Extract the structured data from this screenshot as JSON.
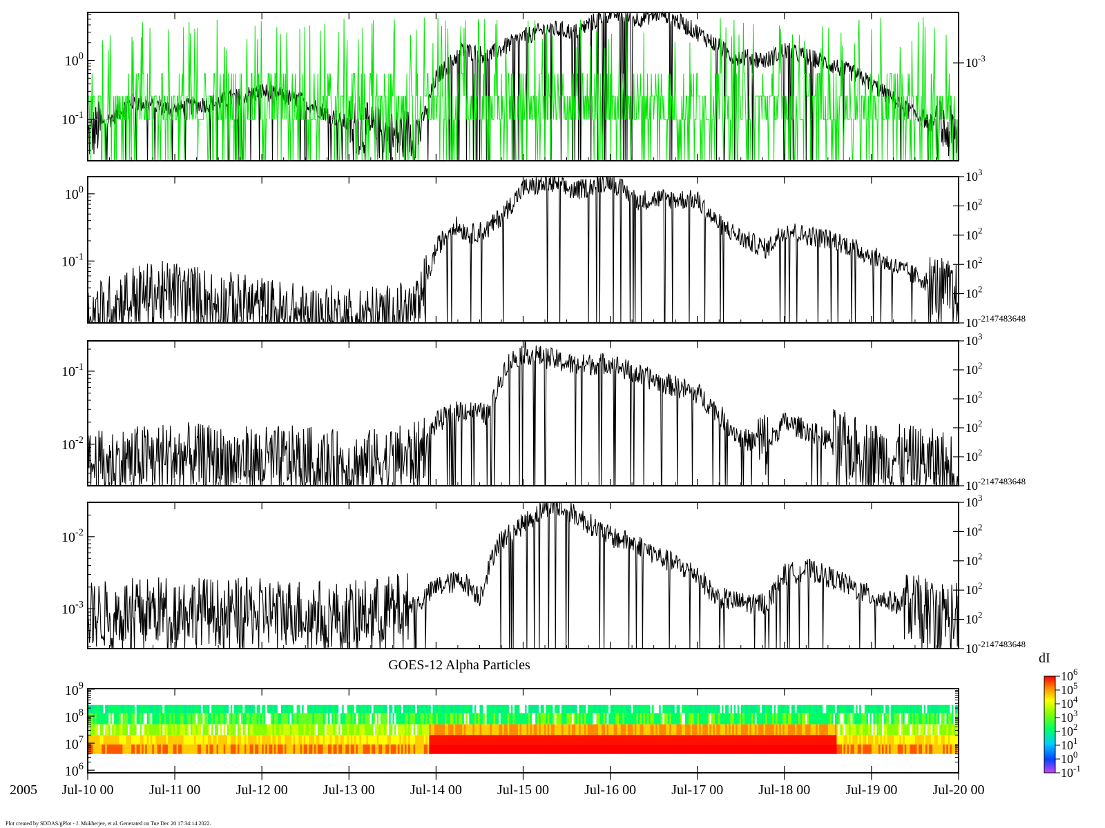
{
  "footer_text": "Plot created by SDDAS/gPlot - J. Mukherjee, et al.  Generated on Tue Dec 20 17:34:14 2022.",
  "year_label": "2005",
  "x_ticks": [
    "Jul-10 00",
    "Jul-11 00",
    "Jul-12 00",
    "Jul-13 00",
    "Jul-14 00",
    "Jul-15 00",
    "Jul-16 00",
    "Jul-17 00",
    "Jul-18 00",
    "Jul-19 00",
    "Jul-20 00"
  ],
  "colors": {
    "black_trace": "#000000",
    "green_trace": "#00e600",
    "axis": "#000000"
  },
  "chart_data": [
    {
      "type": "line",
      "panel": 1,
      "left_ticks": [
        {
          "base": "10",
          "exp": "0"
        },
        {
          "base": "10",
          "exp": "-1"
        }
      ],
      "right_ticks": [
        {
          "base": "10",
          "exp": "-3"
        }
      ],
      "series": [
        {
          "color": "#000000",
          "x": [
            0,
            0.5,
            1,
            1.5,
            2,
            2.5,
            3,
            3.5,
            3.8,
            4,
            4.3,
            4.6,
            5,
            5.3,
            5.6,
            6,
            6.3,
            6.6,
            7,
            7.4,
            7.8,
            8,
            8.4,
            8.8,
            9,
            9.4,
            9.8,
            10
          ],
          "y": [
            0.05,
            0.2,
            0.15,
            0.2,
            0.3,
            0.2,
            0.08,
            0.05,
            0.06,
            0.5,
            1.5,
            1.2,
            2.5,
            3.5,
            3,
            6.5,
            5,
            6.5,
            3,
            1.2,
            1,
            1.5,
            1,
            0.6,
            0.4,
            0.15,
            0.07,
            0.05
          ]
        },
        {
          "color": "#00e600",
          "x": [
            0,
            10
          ],
          "y": [
            0.1,
            0.5
          ]
        }
      ]
    },
    {
      "type": "line",
      "panel": 2,
      "left_ticks": [
        {
          "base": "10",
          "exp": "0"
        },
        {
          "base": "10",
          "exp": "-1"
        }
      ],
      "right_ticks": [
        {
          "base": "10",
          "exp": "3"
        },
        {
          "base": "10",
          "exp": "2"
        },
        {
          "base": "10",
          "exp": "2"
        },
        {
          "base": "10",
          "exp": "2"
        },
        {
          "base": "10",
          "exp": "2"
        },
        {
          "base": "10",
          "exp": "-2147483648"
        }
      ],
      "series": [
        {
          "color": "#000000",
          "x": [
            0,
            0.5,
            1,
            1.5,
            2,
            2.5,
            3,
            3.5,
            3.8,
            4,
            4.2,
            4.4,
            4.6,
            4.8,
            5,
            5.3,
            5.6,
            6,
            6.3,
            6.6,
            7,
            7.2,
            7.5,
            7.8,
            8,
            8.2,
            8.6,
            9,
            9.5,
            10
          ],
          "y": [
            0.015,
            0.03,
            0.035,
            0.025,
            0.02,
            0.015,
            0.015,
            0.015,
            0.02,
            0.15,
            0.35,
            0.25,
            0.3,
            0.55,
            1.2,
            1.4,
            1.1,
            1.6,
            0.8,
            0.85,
            0.8,
            0.4,
            0.22,
            0.15,
            0.3,
            0.25,
            0.2,
            0.12,
            0.06,
            0.03
          ]
        }
      ]
    },
    {
      "type": "line",
      "panel": 3,
      "left_ticks": [
        {
          "base": "10",
          "exp": "-1"
        },
        {
          "base": "10",
          "exp": "-2"
        }
      ],
      "right_ticks": [
        {
          "base": "10",
          "exp": "3"
        },
        {
          "base": "10",
          "exp": "2"
        },
        {
          "base": "10",
          "exp": "2"
        },
        {
          "base": "10",
          "exp": "2"
        },
        {
          "base": "10",
          "exp": "2"
        },
        {
          "base": "10",
          "exp": "-2147483648"
        }
      ],
      "series": [
        {
          "color": "#000000",
          "x": [
            0,
            0.5,
            1,
            1.5,
            2,
            2.5,
            3,
            3.5,
            3.8,
            4,
            4.3,
            4.6,
            4.8,
            5,
            5.3,
            5.6,
            6,
            6.3,
            6.6,
            7,
            7.2,
            7.5,
            7.8,
            8,
            8.3,
            8.6,
            9,
            9.5,
            10
          ],
          "y": [
            0.005,
            0.006,
            0.007,
            0.006,
            0.006,
            0.006,
            0.005,
            0.006,
            0.007,
            0.02,
            0.03,
            0.025,
            0.12,
            0.18,
            0.15,
            0.12,
            0.13,
            0.09,
            0.07,
            0.05,
            0.03,
            0.012,
            0.01,
            0.02,
            0.015,
            0.01,
            0.007,
            0.006,
            0.005
          ]
        }
      ]
    },
    {
      "type": "line",
      "panel": 4,
      "left_ticks": [
        {
          "base": "10",
          "exp": "-2"
        },
        {
          "base": "10",
          "exp": "-3"
        }
      ],
      "right_ticks": [
        {
          "base": "10",
          "exp": "3"
        },
        {
          "base": "10",
          "exp": "2"
        },
        {
          "base": "10",
          "exp": "2"
        },
        {
          "base": "10",
          "exp": "2"
        },
        {
          "base": "10",
          "exp": "2"
        },
        {
          "base": "10",
          "exp": "-2147483648"
        }
      ],
      "series": [
        {
          "color": "#000000",
          "x": [
            0,
            0.5,
            1,
            1.5,
            2,
            2.5,
            3,
            3.5,
            3.8,
            4,
            4.3,
            4.5,
            4.7,
            5,
            5.3,
            5.6,
            6,
            6.3,
            6.6,
            7,
            7.2,
            7.5,
            7.8,
            8,
            8.3,
            8.6,
            9,
            9.5,
            10
          ],
          "y": [
            0.0008,
            0.0009,
            0.001,
            0.0009,
            0.0009,
            0.0009,
            0.0008,
            0.001,
            0.0012,
            0.002,
            0.0025,
            0.0015,
            0.008,
            0.015,
            0.028,
            0.02,
            0.01,
            0.008,
            0.005,
            0.003,
            0.0015,
            0.0012,
            0.0012,
            0.003,
            0.0035,
            0.0025,
            0.0015,
            0.001,
            0.0008
          ]
        }
      ]
    },
    {
      "type": "heatmap",
      "panel": 5,
      "title": "GOES-12 Alpha Particles",
      "left_ticks": [
        {
          "base": "10",
          "exp": "9"
        },
        {
          "base": "10",
          "exp": "8"
        },
        {
          "base": "10",
          "exp": "7"
        },
        {
          "base": "10",
          "exp": "6"
        }
      ],
      "colorbar": {
        "label": "dI",
        "ticks": [
          {
            "base": "10",
            "exp": "6"
          },
          {
            "base": "10",
            "exp": "5"
          },
          {
            "base": "10",
            "exp": "4"
          },
          {
            "base": "10",
            "exp": "3"
          },
          {
            "base": "10",
            "exp": "2"
          },
          {
            "base": "10",
            "exp": "1"
          },
          {
            "base": "10",
            "exp": "0"
          },
          {
            "base": "10",
            "exp": "-1"
          }
        ],
        "colors": [
          "#ff0000",
          "#ff8800",
          "#ffff00",
          "#88ff00",
          "#00ff66",
          "#00ccff",
          "#0044ff",
          "#cc44ff"
        ]
      },
      "bands": [
        {
          "name": "",
          "ymin": 130000000.0,
          "ymax": 260000000.0
        },
        {
          "name": "",
          "ymin": 50000000.0,
          "ymax": 130000000.0
        },
        {
          "name": "",
          "ymin": 20000000.0,
          "ymax": 50000000.0
        },
        {
          "name": "",
          "ymin": 9000000.0,
          "ymax": 20000000.0
        },
        {
          "name": "",
          "ymin": 4000000.0,
          "ymax": 9000000.0
        }
      ]
    }
  ]
}
